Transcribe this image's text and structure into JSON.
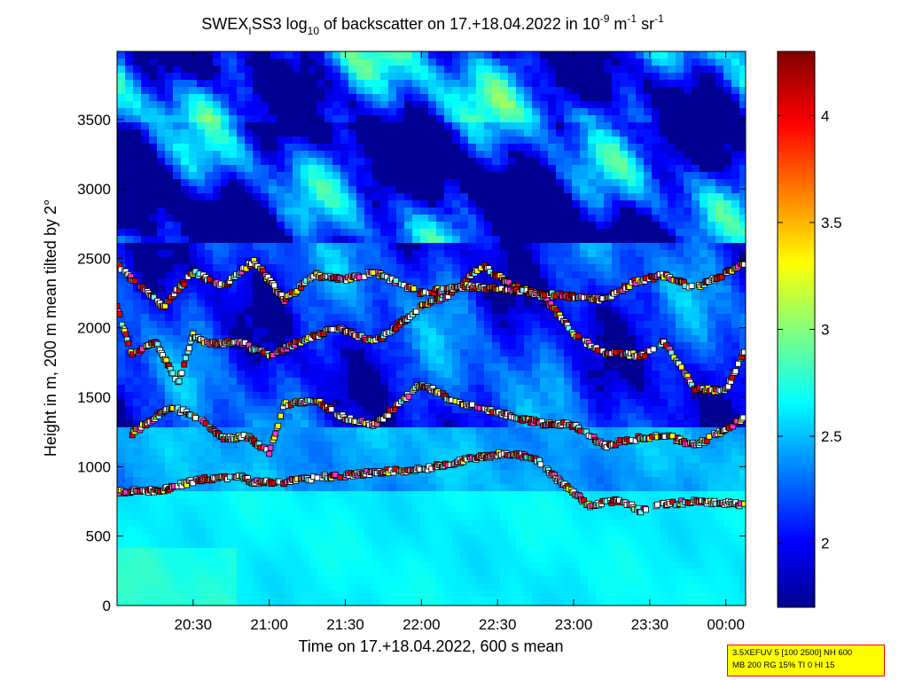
{
  "chart_data": {
    "type": "heatmap",
    "title_parts": {
      "a": "SWEX",
      "a_sub": "I",
      "b": "SS3 log",
      "b_sub": "10",
      "c": " of backscatter on 17.+18.04.2022 in 10",
      "c_sup": "-9",
      "d": " m",
      "d_sup": "-1",
      "e": " sr",
      "e_sup": "-1"
    },
    "xlabel": "Time on 17.+18.04.2022, 600 s mean",
    "ylabel": "Height in m, 200 m mean tilted by 2°",
    "x_ticks": [
      "20:30",
      "21:00",
      "21:30",
      "22:00",
      "22:30",
      "23:00",
      "23:30",
      "00:00"
    ],
    "x_tick_hours": [
      20.5,
      21.0,
      21.5,
      22.0,
      22.5,
      23.0,
      23.5,
      24.0
    ],
    "x_range_hours": [
      20.0,
      24.13
    ],
    "y_ticks": [
      "0",
      "500",
      "1000",
      "1500",
      "2000",
      "2500",
      "3000",
      "3500"
    ],
    "y_tick_values": [
      0,
      500,
      1000,
      1500,
      2000,
      2500,
      3000,
      3500
    ],
    "ylim": [
      0,
      3990
    ],
    "colorbar": {
      "ticks": [
        "2",
        "2.5",
        "3",
        "3.5",
        "4"
      ],
      "tick_values": [
        2.0,
        2.5,
        3.0,
        3.5,
        4.0
      ],
      "range": [
        1.7,
        4.3
      ],
      "colormap": "jet"
    },
    "cloud_layers": [
      {
        "name": "lower layer",
        "points": [
          [
            20.0,
            820
          ],
          [
            20.3,
            830
          ],
          [
            20.55,
            910
          ],
          [
            20.8,
            930
          ],
          [
            20.9,
            890
          ],
          [
            21.1,
            890
          ],
          [
            21.3,
            920
          ],
          [
            21.5,
            935
          ],
          [
            21.7,
            960
          ],
          [
            22.0,
            980
          ],
          [
            22.3,
            1050
          ],
          [
            22.55,
            1100
          ],
          [
            22.75,
            1060
          ],
          [
            22.9,
            900
          ],
          [
            23.1,
            720
          ],
          [
            23.3,
            760
          ],
          [
            23.45,
            680
          ],
          [
            23.6,
            730
          ],
          [
            23.8,
            750
          ],
          [
            24.0,
            740
          ],
          [
            24.13,
            720
          ]
        ]
      },
      {
        "name": "middle layer",
        "points": [
          [
            20.1,
            1240
          ],
          [
            20.35,
            1430
          ],
          [
            20.55,
            1350
          ],
          [
            20.7,
            1200
          ],
          [
            20.85,
            1220
          ],
          [
            21.0,
            1100
          ],
          [
            21.1,
            1450
          ],
          [
            21.3,
            1480
          ],
          [
            21.5,
            1350
          ],
          [
            21.7,
            1300
          ],
          [
            22.0,
            1600
          ],
          [
            22.2,
            1480
          ],
          [
            22.4,
            1420
          ],
          [
            22.6,
            1360
          ],
          [
            22.8,
            1310
          ],
          [
            23.0,
            1300
          ],
          [
            23.2,
            1150
          ],
          [
            23.4,
            1200
          ],
          [
            23.6,
            1230
          ],
          [
            23.8,
            1150
          ],
          [
            24.13,
            1350
          ]
        ]
      },
      {
        "name": "upper layer",
        "points": [
          [
            20.0,
            2150
          ],
          [
            20.1,
            1800
          ],
          [
            20.25,
            1900
          ],
          [
            20.4,
            1600
          ],
          [
            20.5,
            1950
          ],
          [
            20.6,
            1880
          ],
          [
            20.8,
            1900
          ],
          [
            21.0,
            1800
          ],
          [
            21.2,
            1900
          ],
          [
            21.45,
            2000
          ],
          [
            21.7,
            1900
          ],
          [
            22.0,
            2150
          ],
          [
            22.2,
            2250
          ],
          [
            22.4,
            2450
          ],
          [
            22.6,
            2300
          ],
          [
            22.8,
            2230
          ],
          [
            23.0,
            1950
          ],
          [
            23.2,
            1820
          ],
          [
            23.45,
            1800
          ],
          [
            23.6,
            1900
          ],
          [
            23.8,
            1560
          ],
          [
            24.0,
            1550
          ],
          [
            24.13,
            1850
          ]
        ]
      },
      {
        "name": "top layer",
        "points": [
          [
            20.0,
            2450
          ],
          [
            20.3,
            2150
          ],
          [
            20.5,
            2400
          ],
          [
            20.7,
            2300
          ],
          [
            20.9,
            2480
          ],
          [
            21.1,
            2200
          ],
          [
            21.3,
            2380
          ],
          [
            21.5,
            2350
          ],
          [
            21.7,
            2400
          ],
          [
            22.0,
            2250
          ],
          [
            22.3,
            2300
          ],
          [
            23.2,
            2200
          ],
          [
            23.4,
            2330
          ],
          [
            23.6,
            2380
          ],
          [
            23.8,
            2280
          ],
          [
            24.13,
            2470
          ]
        ]
      }
    ],
    "marker_colors": {
      "white": "#ffffff",
      "red": "#dd0000",
      "yellow": "#ffff00",
      "magenta": "#ff33cc",
      "cyan": "#66ffff"
    }
  },
  "info_box": {
    "line1": "3.5XEFUV 5 [100 2500] NH 600",
    "line2": "MB 200 RG 15% TI 0 HI 15"
  }
}
